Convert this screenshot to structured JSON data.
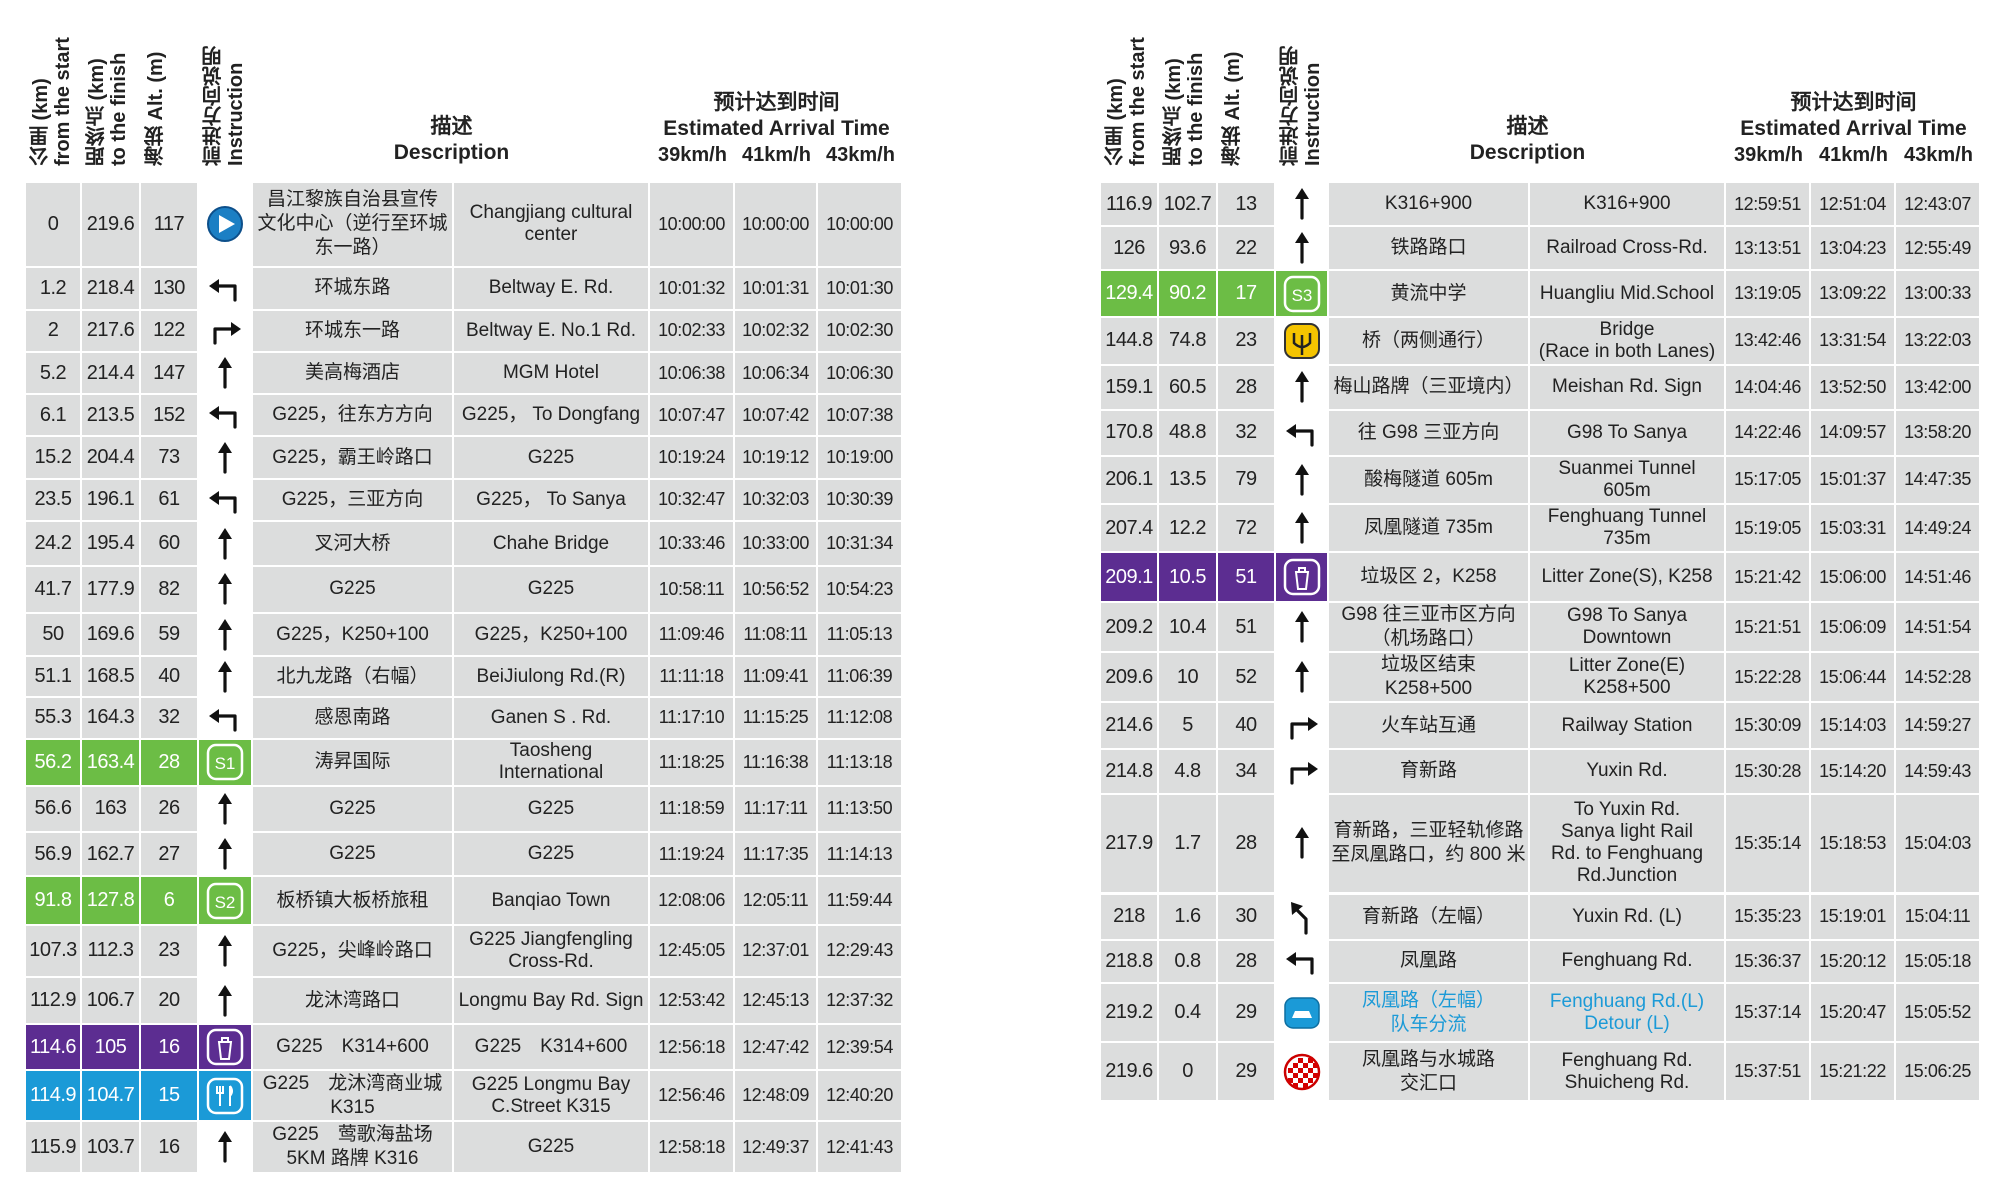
{
  "tables": [
    {
      "header": {
        "from_start": "公里 (km)\nfrom the start",
        "to_finish": "距终点 (km)\nto the finish",
        "alt": "海拔 Alt. (m)",
        "instruction": "前进方向说明\nInstruction",
        "description": "描述\nDescription",
        "eta": "预计达到时间\nEstimated Arrival Time",
        "speeds": [
          "39km/h",
          "41km/h",
          "43km/h"
        ]
      },
      "rows": [
        {
          "km": 0,
          "to_finish": 219.6,
          "alt": 117,
          "desc_cn": "昌江黎族自治县宣传\n文化中心（逆行至环城\n东一路）",
          "desc_en": "Changjiang cultural\ncenter",
          "t39": "10:00:00",
          "t41": "10:00:00",
          "t43": "10:00:00"
        },
        {
          "km": 1.2,
          "to_finish": 218.4,
          "alt": 130,
          "desc_cn": "环城东路",
          "desc_en": "Beltway E. Rd.",
          "t39": "10:01:32",
          "t41": "10:01:31",
          "t43": "10:01:30"
        },
        {
          "km": 2,
          "to_finish": 217.6,
          "alt": 122,
          "desc_cn": "环城东一路",
          "desc_en": "Beltway E. No.1 Rd.",
          "t39": "10:02:33",
          "t41": "10:02:32",
          "t43": "10:02:30"
        },
        {
          "km": 5.2,
          "to_finish": 214.4,
          "alt": 147,
          "desc_cn": "美高梅酒店",
          "desc_en": "MGM Hotel",
          "t39": "10:06:38",
          "t41": "10:06:34",
          "t43": "10:06:30"
        },
        {
          "km": 6.1,
          "to_finish": 213.5,
          "alt": 152,
          "desc_cn": "G225，往东方方向",
          "desc_en": "G225， To Dongfang",
          "t39": "10:07:47",
          "t41": "10:07:42",
          "t43": "10:07:38"
        },
        {
          "km": 15.2,
          "to_finish": 204.4,
          "alt": 73,
          "desc_cn": "G225，霸王岭路口",
          "desc_en": "G225",
          "t39": "10:19:24",
          "t41": "10:19:12",
          "t43": "10:19:00"
        },
        {
          "km": 23.5,
          "to_finish": 196.1,
          "alt": 61,
          "desc_cn": "G225，三亚方向",
          "desc_en": "G225， To Sanya",
          "t39": "10:32:47",
          "t41": "10:32:03",
          "t43": "10:30:39"
        },
        {
          "km": 24.2,
          "to_finish": 195.4,
          "alt": 60,
          "desc_cn": "叉河大桥",
          "desc_en": "Chahe Bridge",
          "t39": "10:33:46",
          "t41": "10:33:00",
          "t43": "10:31:34"
        },
        {
          "km": 41.7,
          "to_finish": 177.9,
          "alt": 82,
          "desc_cn": "G225",
          "desc_en": "G225",
          "t39": "10:58:11",
          "t41": "10:56:52",
          "t43": "10:54:23"
        },
        {
          "km": 50,
          "to_finish": 169.6,
          "alt": 59,
          "desc_cn": "G225，K250+100",
          "desc_en": "G225，K250+100",
          "t39": "11:09:46",
          "t41": "11:08:11",
          "t43": "11:05:13"
        },
        {
          "km": 51.1,
          "to_finish": 168.5,
          "alt": 40,
          "desc_cn": "北九龙路（右幅）",
          "desc_en": "BeiJiulong Rd.(R)",
          "t39": "11:11:18",
          "t41": "11:09:41",
          "t43": "11:06:39"
        },
        {
          "km": 55.3,
          "to_finish": 164.3,
          "alt": 32,
          "desc_cn": "感恩南路",
          "desc_en": "Ganen S . Rd.",
          "t39": "11:17:10",
          "t41": "11:15:25",
          "t43": "11:12:08"
        },
        {
          "km": 56.2,
          "to_finish": 163.4,
          "alt": 28,
          "sign": "S1",
          "desc_cn": "涛昇国际",
          "desc_en": "Taosheng\nInternational",
          "t39": "11:18:25",
          "t41": "11:16:38",
          "t43": "11:13:18"
        },
        {
          "km": 56.6,
          "to_finish": 163,
          "alt": 26,
          "desc_cn": "G225",
          "desc_en": "G225",
          "t39": "11:18:59",
          "t41": "11:17:11",
          "t43": "11:13:50"
        },
        {
          "km": 56.9,
          "to_finish": 162.7,
          "alt": 27,
          "desc_cn": "G225",
          "desc_en": "G225",
          "t39": "11:19:24",
          "t41": "11:17:35",
          "t43": "11:14:13"
        },
        {
          "km": 91.8,
          "to_finish": 127.8,
          "alt": 6,
          "sign": "S2",
          "desc_cn": "板桥镇大板桥旅租",
          "desc_en": "Banqiao Town",
          "t39": "12:08:06",
          "t41": "12:05:11",
          "t43": "11:59:44"
        },
        {
          "km": 107.3,
          "to_finish": 112.3,
          "alt": 23,
          "desc_cn": "G225，尖峰岭路口",
          "desc_en": "G225 Jiangfengling\nCross-Rd.",
          "t39": "12:45:05",
          "t41": "12:37:01",
          "t43": "12:29:43"
        },
        {
          "km": 112.9,
          "to_finish": 106.7,
          "alt": 20,
          "desc_cn": "龙沐湾路口",
          "desc_en": "Longmu Bay Rd. Sign",
          "t39": "12:53:42",
          "t41": "12:45:13",
          "t43": "12:37:32"
        },
        {
          "km": 114.6,
          "to_finish": 105,
          "alt": 16,
          "desc_cn": "G225　K314+600",
          "desc_en": "G225　K314+600",
          "t39": "12:56:18",
          "t41": "12:47:42",
          "t43": "12:39:54"
        },
        {
          "km": 114.9,
          "to_finish": 104.7,
          "alt": 15,
          "desc_cn": "G225　龙沐湾商业城\nK315",
          "desc_en": "G225 Longmu Bay\nC.Street K315",
          "t39": "12:56:46",
          "t41": "12:48:09",
          "t43": "12:40:20"
        },
        {
          "km": 115.9,
          "to_finish": 103.7,
          "alt": 16,
          "desc_cn": "G225　莺歌海盐场\n5KM 路牌 K316",
          "desc_en": "G225",
          "t39": "12:58:18",
          "t41": "12:49:37",
          "t43": "12:41:43"
        }
      ]
    },
    {
      "header": {
        "from_start": "公里 (km)\nfrom the start",
        "to_finish": "距终点 (km)\nto the finish",
        "alt": "海拔 Alt. (m)",
        "instruction": "前进方向说明\nInstruction",
        "description": "描述\nDescription",
        "eta": "预计达到时间\nEstimated Arrival Time",
        "speeds": [
          "39km/h",
          "41km/h",
          "43km/h"
        ]
      },
      "rows": [
        {
          "km": 116.9,
          "to_finish": 102.7,
          "alt": 13,
          "desc_cn": "K316+900",
          "desc_en": "K316+900",
          "t39": "12:59:51",
          "t41": "12:51:04",
          "t43": "12:43:07"
        },
        {
          "km": 126,
          "to_finish": 93.6,
          "alt": 22,
          "desc_cn": "铁路路口",
          "desc_en": "Railroad Cross-Rd.",
          "t39": "13:13:51",
          "t41": "13:04:23",
          "t43": "12:55:49"
        },
        {
          "km": 129.4,
          "to_finish": 90.2,
          "alt": 17,
          "sign": "S3",
          "desc_cn": "黄流中学",
          "desc_en": "Huangliu Mid.School",
          "t39": "13:19:05",
          "t41": "13:09:22",
          "t43": "13:00:33"
        },
        {
          "km": 144.8,
          "to_finish": 74.8,
          "alt": 23,
          "desc_cn": "桥（两侧通行）",
          "desc_en": "Bridge\n(Race in both Lanes)",
          "t39": "13:42:46",
          "t41": "13:31:54",
          "t43": "13:22:03"
        },
        {
          "km": 159.1,
          "to_finish": 60.5,
          "alt": 28,
          "desc_cn": "梅山路牌（三亚境内）",
          "desc_en": "Meishan Rd. Sign",
          "t39": "14:04:46",
          "t41": "13:52:50",
          "t43": "13:42:00"
        },
        {
          "km": 170.8,
          "to_finish": 48.8,
          "alt": 32,
          "desc_cn": "往 G98 三亚方向",
          "desc_en": "G98 To Sanya",
          "t39": "14:22:46",
          "t41": "14:09:57",
          "t43": "13:58:20"
        },
        {
          "km": 206.1,
          "to_finish": 13.5,
          "alt": 79,
          "desc_cn": "酸梅隧道 605m",
          "desc_en": "Suanmei Tunnel\n605m",
          "t39": "15:17:05",
          "t41": "15:01:37",
          "t43": "14:47:35"
        },
        {
          "km": 207.4,
          "to_finish": 12.2,
          "alt": 72,
          "desc_cn": "凤凰隧道 735m",
          "desc_en": "Fenghuang Tunnel\n735m",
          "t39": "15:19:05",
          "t41": "15:03:31",
          "t43": "14:49:24"
        },
        {
          "km": 209.1,
          "to_finish": 10.5,
          "alt": 51,
          "desc_cn": "垃圾区 2，K258",
          "desc_en": "Litter Zone(S), K258",
          "t39": "15:21:42",
          "t41": "15:06:00",
          "t43": "14:51:46"
        },
        {
          "km": 209.2,
          "to_finish": 10.4,
          "alt": 51,
          "desc_cn": "G98 往三亚市区方向\n（机场路口）",
          "desc_en": "G98 To Sanya\nDowntown",
          "t39": "15:21:51",
          "t41": "15:06:09",
          "t43": "14:51:54"
        },
        {
          "km": 209.6,
          "to_finish": 10,
          "alt": 52,
          "desc_cn": "垃圾区结束\nK258+500",
          "desc_en": "Litter Zone(E)\nK258+500",
          "t39": "15:22:28",
          "t41": "15:06:44",
          "t43": "14:52:28"
        },
        {
          "km": 214.6,
          "to_finish": 5,
          "alt": 40,
          "desc_cn": "火车站互通",
          "desc_en": "Railway Station",
          "t39": "15:30:09",
          "t41": "15:14:03",
          "t43": "14:59:27"
        },
        {
          "km": 214.8,
          "to_finish": 4.8,
          "alt": 34,
          "desc_cn": "育新路",
          "desc_en": "Yuxin Rd.",
          "t39": "15:30:28",
          "t41": "15:14:20",
          "t43": "14:59:43"
        },
        {
          "km": 217.9,
          "to_finish": 1.7,
          "alt": 28,
          "desc_cn": "育新路，三亚轻轨修路\n至凤凰路口，约 800 米",
          "desc_en": "To Yuxin Rd.\nSanya light Rail\nRd. to Fenghuang\nRd.Junction",
          "t39": "15:35:14",
          "t41": "15:18:53",
          "t43": "15:04:03"
        },
        {
          "km": 218,
          "to_finish": 1.6,
          "alt": 30,
          "desc_cn": "育新路（左幅）",
          "desc_en": "Yuxin Rd. (L)",
          "t39": "15:35:23",
          "t41": "15:19:01",
          "t43": "15:04:11"
        },
        {
          "km": 218.8,
          "to_finish": 0.8,
          "alt": 28,
          "desc_cn": "凤凰路",
          "desc_en": "Fenghuang Rd.",
          "t39": "15:36:37",
          "t41": "15:20:12",
          "t43": "15:05:18"
        },
        {
          "km": 219.2,
          "to_finish": 0.4,
          "alt": 29,
          "desc_cn": "凤凰路（左幅）\n队车分流",
          "desc_en": "Fenghuang Rd.(L)\nDetour (L)",
          "t39": "15:37:14",
          "t41": "15:20:47",
          "t43": "15:05:52"
        },
        {
          "km": 219.6,
          "to_finish": 0,
          "alt": 29,
          "desc_cn": "凤凰路与水城路\n交汇口",
          "desc_en": "Fenghuang Rd.\nShuicheng Rd.",
          "t39": "15:37:51",
          "t41": "15:21:22",
          "t43": "15:06:25"
        }
      ]
    }
  ]
}
